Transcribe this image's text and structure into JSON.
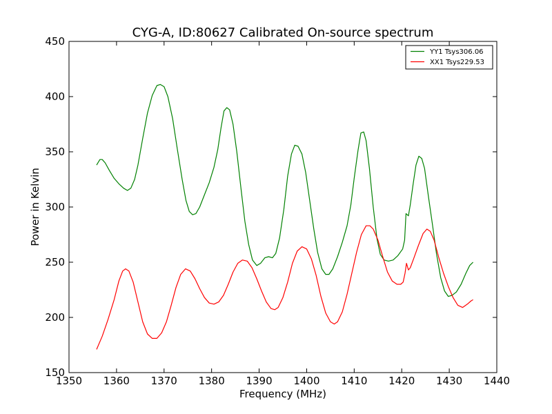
{
  "chart_data": {
    "type": "line",
    "title": "CYG-A, ID:80627 Calibrated On-source spectrum",
    "xlabel": "Frequency (MHz)",
    "ylabel": "Power in Kelvin",
    "xlim": [
      1350,
      1440
    ],
    "ylim": [
      150,
      450
    ],
    "xticks": [
      "1350",
      "1360",
      "1370",
      "1380",
      "1390",
      "1400",
      "1410",
      "1420",
      "1430",
      "1440"
    ],
    "yticks": [
      "150",
      "200",
      "250",
      "300",
      "350",
      "400",
      "450"
    ],
    "grid": false,
    "legend_position": "top-right",
    "series": [
      {
        "name": "YY1 Tsys306.06",
        "color": "#008000",
        "points": [
          [
            1355.8,
            338
          ],
          [
            1356.5,
            343
          ],
          [
            1357.0,
            343
          ],
          [
            1357.6,
            340
          ],
          [
            1358.5,
            333
          ],
          [
            1359.5,
            326
          ],
          [
            1360.5,
            321
          ],
          [
            1361.5,
            317
          ],
          [
            1362.3,
            315
          ],
          [
            1363.0,
            317
          ],
          [
            1363.8,
            325
          ],
          [
            1364.5,
            338
          ],
          [
            1365.5,
            362
          ],
          [
            1366.5,
            385
          ],
          [
            1367.5,
            401
          ],
          [
            1368.5,
            410
          ],
          [
            1369.2,
            411
          ],
          [
            1370.0,
            409
          ],
          [
            1370.8,
            400
          ],
          [
            1371.8,
            380
          ],
          [
            1372.8,
            352
          ],
          [
            1373.8,
            325
          ],
          [
            1374.6,
            306
          ],
          [
            1375.3,
            296
          ],
          [
            1376.0,
            293
          ],
          [
            1376.7,
            294
          ],
          [
            1377.5,
            300
          ],
          [
            1378.5,
            311
          ],
          [
            1379.5,
            322
          ],
          [
            1380.5,
            336
          ],
          [
            1381.3,
            352
          ],
          [
            1382.0,
            372
          ],
          [
            1382.6,
            387
          ],
          [
            1383.2,
            390
          ],
          [
            1383.8,
            388
          ],
          [
            1384.5,
            375
          ],
          [
            1385.3,
            350
          ],
          [
            1386.2,
            316
          ],
          [
            1387.0,
            287
          ],
          [
            1387.8,
            266
          ],
          [
            1388.6,
            252
          ],
          [
            1389.5,
            247
          ],
          [
            1390.3,
            249
          ],
          [
            1391.2,
            254
          ],
          [
            1392.0,
            255
          ],
          [
            1392.8,
            254
          ],
          [
            1393.5,
            258
          ],
          [
            1394.3,
            272
          ],
          [
            1395.2,
            298
          ],
          [
            1396.0,
            328
          ],
          [
            1396.8,
            348
          ],
          [
            1397.5,
            356
          ],
          [
            1398.2,
            355
          ],
          [
            1399.0,
            348
          ],
          [
            1399.8,
            331
          ],
          [
            1400.6,
            307
          ],
          [
            1401.5,
            280
          ],
          [
            1402.3,
            259
          ],
          [
            1403.2,
            244
          ],
          [
            1404.0,
            239
          ],
          [
            1404.7,
            239
          ],
          [
            1405.5,
            244
          ],
          [
            1406.5,
            255
          ],
          [
            1407.5,
            268
          ],
          [
            1408.5,
            283
          ],
          [
            1409.3,
            302
          ],
          [
            1410.0,
            326
          ],
          [
            1410.8,
            351
          ],
          [
            1411.4,
            367
          ],
          [
            1412.0,
            368
          ],
          [
            1412.5,
            360
          ],
          [
            1413.2,
            335
          ],
          [
            1414.0,
            300
          ],
          [
            1414.8,
            271
          ],
          [
            1415.5,
            257
          ],
          [
            1416.3,
            252
          ],
          [
            1417.2,
            251
          ],
          [
            1418.2,
            252
          ],
          [
            1419.2,
            256
          ],
          [
            1420.2,
            262
          ],
          [
            1420.6,
            270
          ],
          [
            1420.9,
            294
          ],
          [
            1421.4,
            292
          ],
          [
            1421.8,
            302
          ],
          [
            1422.4,
            321
          ],
          [
            1423.0,
            338
          ],
          [
            1423.6,
            346
          ],
          [
            1424.2,
            344
          ],
          [
            1424.8,
            335
          ],
          [
            1425.6,
            310
          ],
          [
            1426.5,
            283
          ],
          [
            1427.3,
            258
          ],
          [
            1428.2,
            236
          ],
          [
            1429.0,
            224
          ],
          [
            1429.8,
            219
          ],
          [
            1430.6,
            220
          ],
          [
            1431.5,
            223
          ],
          [
            1432.5,
            230
          ],
          [
            1433.5,
            240
          ],
          [
            1434.3,
            247
          ],
          [
            1435.0,
            250
          ]
        ]
      },
      {
        "name": "XX1 Tsys229.53",
        "color": "#ff0000",
        "points": [
          [
            1355.8,
            171
          ],
          [
            1357.0,
            183
          ],
          [
            1358.2,
            198
          ],
          [
            1359.5,
            216
          ],
          [
            1360.5,
            233
          ],
          [
            1361.3,
            242
          ],
          [
            1361.9,
            244
          ],
          [
            1362.6,
            242
          ],
          [
            1363.5,
            232
          ],
          [
            1364.5,
            214
          ],
          [
            1365.5,
            196
          ],
          [
            1366.5,
            185
          ],
          [
            1367.5,
            181
          ],
          [
            1368.5,
            181
          ],
          [
            1369.5,
            186
          ],
          [
            1370.5,
            196
          ],
          [
            1371.5,
            211
          ],
          [
            1372.5,
            227
          ],
          [
            1373.5,
            239
          ],
          [
            1374.5,
            244
          ],
          [
            1375.5,
            242
          ],
          [
            1376.5,
            235
          ],
          [
            1377.5,
            226
          ],
          [
            1378.5,
            218
          ],
          [
            1379.5,
            213
          ],
          [
            1380.5,
            212
          ],
          [
            1381.5,
            214
          ],
          [
            1382.5,
            220
          ],
          [
            1383.5,
            230
          ],
          [
            1384.5,
            241
          ],
          [
            1385.5,
            249
          ],
          [
            1386.5,
            252
          ],
          [
            1387.5,
            251
          ],
          [
            1388.5,
            245
          ],
          [
            1389.5,
            235
          ],
          [
            1390.5,
            224
          ],
          [
            1391.5,
            214
          ],
          [
            1392.5,
            208
          ],
          [
            1393.3,
            207
          ],
          [
            1394.0,
            209
          ],
          [
            1395.0,
            218
          ],
          [
            1396.0,
            232
          ],
          [
            1397.0,
            249
          ],
          [
            1398.0,
            260
          ],
          [
            1399.0,
            264
          ],
          [
            1400.0,
            262
          ],
          [
            1401.0,
            253
          ],
          [
            1402.0,
            238
          ],
          [
            1403.0,
            219
          ],
          [
            1404.0,
            204
          ],
          [
            1405.0,
            196
          ],
          [
            1405.8,
            194
          ],
          [
            1406.5,
            196
          ],
          [
            1407.5,
            205
          ],
          [
            1408.5,
            221
          ],
          [
            1409.5,
            240
          ],
          [
            1410.5,
            259
          ],
          [
            1411.5,
            275
          ],
          [
            1412.5,
            283
          ],
          [
            1413.3,
            283
          ],
          [
            1414.0,
            280
          ],
          [
            1415.0,
            270
          ],
          [
            1416.0,
            255
          ],
          [
            1417.0,
            241
          ],
          [
            1418.0,
            233
          ],
          [
            1419.0,
            230
          ],
          [
            1419.8,
            230
          ],
          [
            1420.3,
            232
          ],
          [
            1420.7,
            240
          ],
          [
            1421.0,
            249
          ],
          [
            1421.4,
            243
          ],
          [
            1421.8,
            245
          ],
          [
            1422.5,
            253
          ],
          [
            1423.5,
            265
          ],
          [
            1424.5,
            276
          ],
          [
            1425.3,
            280
          ],
          [
            1426.0,
            278
          ],
          [
            1426.8,
            270
          ],
          [
            1427.8,
            254
          ],
          [
            1428.8,
            240
          ],
          [
            1429.8,
            228
          ],
          [
            1430.8,
            218
          ],
          [
            1431.8,
            211
          ],
          [
            1432.8,
            209
          ],
          [
            1433.8,
            212
          ],
          [
            1434.6,
            215
          ],
          [
            1435.0,
            216
          ]
        ]
      }
    ]
  }
}
